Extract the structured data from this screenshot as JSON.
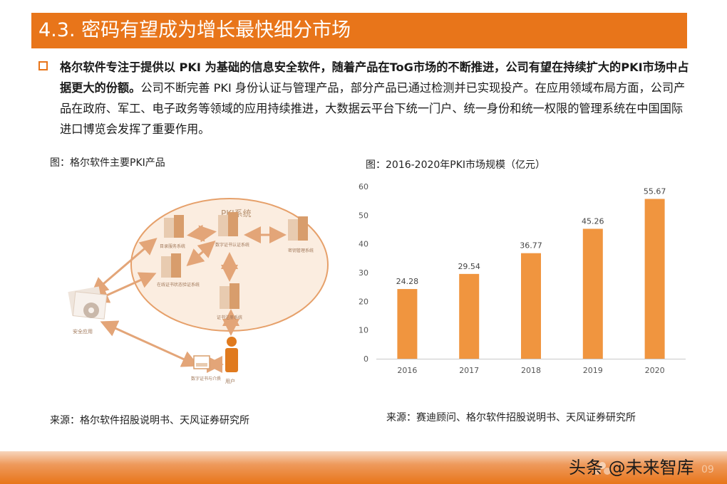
{
  "header": {
    "title": "4.3. 密码有望成为增长最快细分市场"
  },
  "body": {
    "bold_text": "格尔软件专注于提供以 PKI 为基础的信息安全软件，随着产品在ToG市场的不断推进，公司有望在持续扩大的PKI市场中占据更大的份额。",
    "normal_text": "公司不断完善 PKI 身份认证与管理产品，部分产品已通过检测并已实现投产。在应用领域布局方面，公司产品在政府、军工、电子政务等领域的应用持续推进，大数据云平台下统一门户、统一身份和统一权限的管理系统在中国国际进口博览会发挥了重要作用。"
  },
  "figure_left": {
    "caption": "图：格尔软件主要PKI产品",
    "source": "来源：格尔软件招股说明书、天风证券研究所",
    "diagram": {
      "system_label": "PKI系统",
      "nodes": {
        "directory": "目录服务系统",
        "ca": "数字证书认证系统",
        "key_mgmt": "密钥管理系统",
        "ocsp": "在线证书状态验证系统",
        "ra": "证书注册系统",
        "security_app": "安全应用",
        "cert_media": "数字证书与介质",
        "user": "用户"
      }
    }
  },
  "figure_right": {
    "caption": "图：2016-2020年PKI市场规模（亿元）",
    "source": "来源：赛迪顾问、格尔软件招股说明书、天风证券研究所"
  },
  "chart_data": {
    "type": "bar",
    "categories": [
      "2016",
      "2017",
      "2018",
      "2019",
      "2020"
    ],
    "values": [
      24.28,
      29.54,
      36.77,
      45.26,
      55.67
    ],
    "yticks": [
      "0",
      "10",
      "20",
      "30",
      "40",
      "50",
      "60"
    ],
    "ylim": [
      0,
      60
    ],
    "grid": false,
    "bar_color": "#f0953f"
  },
  "footer": {
    "watermark": "头条 @未来智库",
    "page_number": "09",
    "logo_icon": "tf-securities-logo-icon"
  }
}
